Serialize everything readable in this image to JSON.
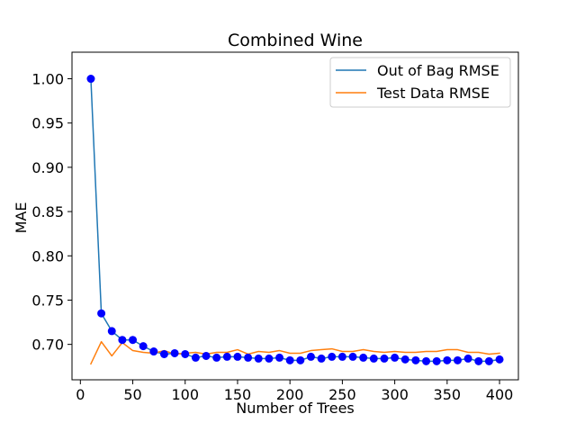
{
  "chart_data": {
    "type": "line",
    "title": "Combined Wine",
    "xlabel": "Number of Trees",
    "ylabel": "MAE",
    "xlim": [
      -8,
      418
    ],
    "ylim": [
      0.66,
      1.03
    ],
    "xticks": [
      0,
      50,
      100,
      150,
      200,
      250,
      300,
      350,
      400
    ],
    "yticks": [
      0.7,
      0.75,
      0.8,
      0.85,
      0.9,
      0.95,
      1.0
    ],
    "ytick_labels": [
      "0.70",
      "0.75",
      "0.80",
      "0.85",
      "0.90",
      "0.95",
      "1.00"
    ],
    "grid": false,
    "legend_position": "top-right",
    "x": [
      10,
      20,
      30,
      40,
      50,
      60,
      70,
      80,
      90,
      100,
      110,
      120,
      130,
      140,
      150,
      160,
      170,
      180,
      190,
      200,
      210,
      220,
      230,
      240,
      250,
      260,
      270,
      280,
      290,
      300,
      310,
      320,
      330,
      340,
      350,
      360,
      370,
      380,
      390,
      400
    ],
    "series": [
      {
        "name": "Out of Bag RMSE",
        "color": "#1f77b4",
        "marker_color": "#0000ff",
        "markers": true,
        "values": [
          1.0,
          0.735,
          0.715,
          0.705,
          0.705,
          0.698,
          0.692,
          0.689,
          0.69,
          0.689,
          0.685,
          0.687,
          0.685,
          0.686,
          0.686,
          0.685,
          0.684,
          0.684,
          0.685,
          0.682,
          0.682,
          0.686,
          0.684,
          0.686,
          0.686,
          0.686,
          0.685,
          0.684,
          0.684,
          0.685,
          0.683,
          0.682,
          0.681,
          0.681,
          0.682,
          0.682,
          0.684,
          0.681,
          0.681,
          0.683
        ]
      },
      {
        "name": "Test Data RMSE",
        "color": "#ff7f0e",
        "markers": false,
        "values": [
          0.678,
          0.703,
          0.687,
          0.702,
          0.693,
          0.691,
          0.69,
          0.693,
          0.689,
          0.69,
          0.691,
          0.689,
          0.691,
          0.691,
          0.694,
          0.689,
          0.692,
          0.691,
          0.693,
          0.69,
          0.69,
          0.693,
          0.694,
          0.695,
          0.692,
          0.692,
          0.694,
          0.692,
          0.691,
          0.692,
          0.691,
          0.691,
          0.692,
          0.692,
          0.694,
          0.694,
          0.691,
          0.691,
          0.689,
          0.69
        ]
      }
    ]
  }
}
